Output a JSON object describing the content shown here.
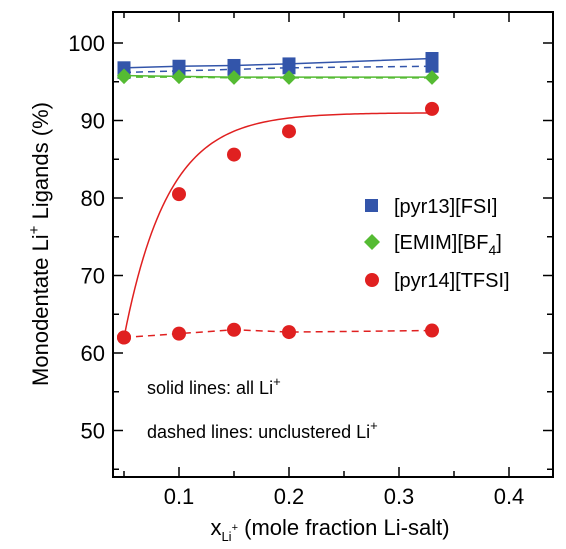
{
  "chart_data": {
    "type": "scatter",
    "xlabel_main": "x",
    "xlabel_sub": "Li",
    "xlabel_sup": "+",
    "xlabel_rest": " (mole fraction Li-salt)",
    "ylabel_pre": "Monodentate Li",
    "ylabel_sup": "+",
    "ylabel_post": " Ligands (%)",
    "xlim": [
      0.04,
      0.44
    ],
    "ylim": [
      44,
      104
    ],
    "xticks": [
      0.1,
      0.2,
      0.3,
      0.4
    ],
    "xtick_labels": [
      "0.1",
      "0.2",
      "0.3",
      "0.4"
    ],
    "yticks": [
      50,
      60,
      70,
      80,
      90,
      100
    ],
    "ytick_labels": [
      "50",
      "60",
      "70",
      "80",
      "90",
      "100"
    ],
    "x": [
      0.05,
      0.1,
      0.15,
      0.2,
      0.33
    ],
    "series": [
      {
        "name": "[pyr13][FSI]",
        "color": "#3355aa",
        "marker": "square",
        "solid": [
          96.8,
          97.0,
          97.1,
          97.3,
          98.0
        ],
        "dashed": [
          96.2,
          96.4,
          96.6,
          96.8,
          97.0
        ]
      },
      {
        "name": "[EMIM][BF4]",
        "name_main": "[EMIM][BF",
        "name_sub": "4",
        "name_end": "]",
        "color": "#55bb33",
        "marker": "diamond",
        "solid": [
          95.8,
          95.7,
          95.6,
          95.6,
          95.6
        ],
        "dashed": [
          95.6,
          95.6,
          95.5,
          95.5,
          95.5
        ]
      },
      {
        "name": "[pyr14][TFSI]",
        "color": "#e02020",
        "marker": "circle",
        "solid": [
          62.0,
          80.5,
          85.6,
          88.6,
          91.5
        ],
        "dashed": [
          62.0,
          62.5,
          63.0,
          62.7,
          62.9
        ],
        "fit": {
          "a": 91.0,
          "b": 29.0,
          "k": 25.0,
          "x0": 0.05
        }
      }
    ],
    "legend_position": "right",
    "annotations": {
      "solid_pre": "solid lines: all Li",
      "solid_sup": "+",
      "dashed_pre": "dashed lines: unclustered Li",
      "dashed_sup": "+"
    }
  }
}
